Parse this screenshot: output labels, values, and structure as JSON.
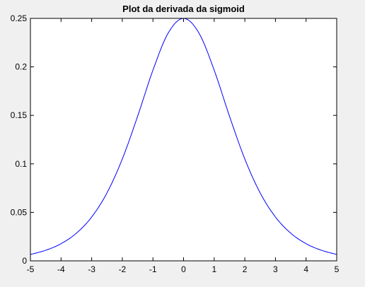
{
  "chart_data": {
    "type": "line",
    "title": "Plot da derivada da sigmoid",
    "xlabel": "",
    "ylabel": "",
    "xlim": [
      -5,
      5
    ],
    "ylim": [
      0,
      0.25
    ],
    "xticks": [
      "-5",
      "-4",
      "-3",
      "-2",
      "-1",
      "0",
      "1",
      "2",
      "3",
      "4",
      "5"
    ],
    "yticks": [
      "0",
      "0.05",
      "0.1",
      "0.15",
      "0.2",
      "0.25"
    ],
    "grid": false,
    "legend": "none",
    "series": [
      {
        "color": "#0000ff",
        "x": [
          -5,
          -4.5,
          -4,
          -3.5,
          -3,
          -2.5,
          -2,
          -1.5,
          -1,
          -0.5,
          0,
          0.5,
          1,
          1.5,
          2,
          2.5,
          3,
          3.5,
          4,
          4.5,
          5
        ],
        "y": [
          0.0066,
          0.0109,
          0.0177,
          0.0285,
          0.0452,
          0.0701,
          0.105,
          0.1491,
          0.1966,
          0.235,
          0.25,
          0.235,
          0.1966,
          0.1491,
          0.105,
          0.0701,
          0.0452,
          0.0285,
          0.0177,
          0.0109,
          0.0066
        ]
      }
    ]
  }
}
